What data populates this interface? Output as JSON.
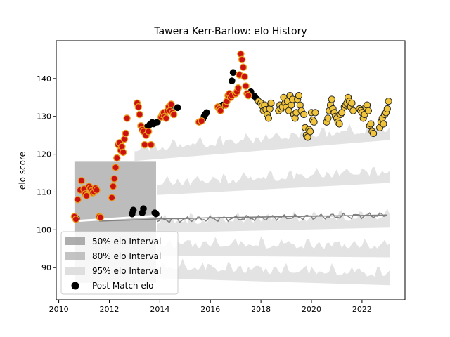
{
  "chart_data": {
    "type": "scatter",
    "title": "Tawera Kerr-Barlow: elo History",
    "xlabel": "",
    "ylabel": "elo score",
    "xlim": [
      2009.9,
      2023.7
    ],
    "ylim": [
      81.5,
      150
    ],
    "xticks": [
      2010,
      2012,
      2014,
      2016,
      2018,
      2020,
      2022
    ],
    "yticks": [
      90,
      100,
      110,
      120,
      130,
      140
    ],
    "grid": false,
    "legend": {
      "placement": "lower-left",
      "entries": [
        "50% elo Interval",
        "80% elo Interval",
        "95% elo Interval",
        "Post Match elo"
      ]
    },
    "colors": {
      "interval_50": "#9a9a9a",
      "interval_80": "#b4b4b4",
      "interval_95": "#d9d9d9",
      "marker_black": "#000000",
      "marker_red_fill": "#cc1111",
      "marker_red_edge": "#e8a020",
      "marker_yellow_fill": "#f0c43c",
      "marker_yellow_edge": "#222222",
      "line": "#808080"
    },
    "intervals": {
      "early_block": {
        "x": [
          2010.62,
          2013.85
        ],
        "lo": [
          86,
          86
        ],
        "hi": [
          118,
          124
        ]
      },
      "mean_line": {
        "x": [
          2011.6,
          2013,
          2014,
          2015,
          2016,
          2017,
          2018,
          2019,
          2020,
          2021,
          2022,
          2023
        ],
        "y": [
          102.3,
          102.6,
          102.9,
          103.0,
          103.2,
          103.3,
          103.4,
          103.5,
          103.6,
          103.7,
          103.8,
          103.9
        ]
      }
    },
    "series": [
      {
        "name": "Post Match elo",
        "style": "black",
        "x": [
          2010.65,
          2010.7,
          2012.9,
          2012.95,
          2013.3,
          2013.35,
          2013.5,
          2013.6,
          2013.7,
          2013.75,
          2013.8,
          2013.85,
          2013.9,
          2014.4,
          2014.7,
          2015.7,
          2015.75,
          2015.8,
          2015.85,
          2016.45,
          2016.5,
          2016.85,
          2016.9,
          2017.6,
          2017.75,
          2017.85
        ],
        "y": [
          103.2,
          103.0,
          104.2,
          105.2,
          104.5,
          105.6,
          127.2,
          127.8,
          128.4,
          128.0,
          104.5,
          104.2,
          128.5,
          132.2,
          132.3,
          129.3,
          130.0,
          130.6,
          131.0,
          132.8,
          133.0,
          139.4,
          141.6,
          136.5,
          135.3,
          134.5
        ]
      },
      {
        "name": "",
        "style": "red",
        "x": [
          2010.62,
          2010.68,
          2010.75,
          2010.85,
          2010.9,
          2011.0,
          2011.05,
          2011.1,
          2011.2,
          2011.25,
          2011.3,
          2011.35,
          2011.4,
          2011.45,
          2011.5,
          2011.6,
          2011.65,
          2012.1,
          2012.15,
          2012.2,
          2012.25,
          2012.3,
          2012.35,
          2012.4,
          2012.45,
          2012.5,
          2012.55,
          2012.6,
          2012.65,
          2012.7,
          2013.1,
          2013.15,
          2013.2,
          2013.25,
          2013.3,
          2013.35,
          2013.4,
          2013.45,
          2013.55,
          2013.65,
          2014.05,
          2014.1,
          2014.15,
          2014.2,
          2014.25,
          2014.3,
          2014.35,
          2014.4,
          2014.45,
          2014.5,
          2014.55,
          2015.55,
          2015.65,
          2016.3,
          2016.35,
          2016.4,
          2016.6,
          2016.65,
          2016.7,
          2016.75,
          2016.8,
          2016.85,
          2017.0,
          2017.05,
          2017.1,
          2017.15,
          2017.2,
          2017.25,
          2017.3,
          2017.35,
          2017.4,
          2017.45,
          2017.5
        ],
        "y": [
          103.5,
          102.8,
          108.0,
          110.5,
          113.0,
          110.8,
          109.5,
          109.0,
          111.5,
          111.0,
          110.3,
          109.8,
          110.0,
          111.0,
          110.5,
          103.5,
          103.3,
          108.5,
          111.5,
          113.5,
          116.5,
          119.0,
          122.5,
          123.0,
          121.0,
          122.0,
          120.5,
          124.0,
          125.5,
          129.5,
          133.5,
          132.5,
          130.5,
          127.5,
          126.5,
          126.0,
          122.5,
          125.0,
          126.0,
          122.5,
          129.8,
          130.5,
          131.0,
          130.0,
          129.5,
          131.5,
          132.5,
          131.5,
          133.2,
          131.0,
          130.5,
          128.5,
          128.8,
          132.5,
          132.0,
          131.5,
          133.0,
          134.0,
          135.5,
          136.0,
          135.0,
          135.5,
          136.0,
          136.5,
          137.5,
          141.0,
          146.5,
          145.0,
          143.0,
          140.5,
          138.0,
          136.0,
          135.5
        ]
      },
      {
        "name": "",
        "style": "yellow",
        "x": [
          2017.9,
          2018.0,
          2018.05,
          2018.1,
          2018.15,
          2018.2,
          2018.25,
          2018.3,
          2018.35,
          2018.4,
          2018.7,
          2018.75,
          2018.8,
          2018.85,
          2018.9,
          2018.95,
          2019.0,
          2019.05,
          2019.1,
          2019.15,
          2019.2,
          2019.25,
          2019.3,
          2019.35,
          2019.4,
          2019.45,
          2019.5,
          2019.55,
          2019.6,
          2019.7,
          2019.75,
          2019.8,
          2019.85,
          2019.9,
          2019.95,
          2020.0,
          2020.05,
          2020.1,
          2020.15,
          2020.6,
          2020.65,
          2020.7,
          2020.75,
          2020.8,
          2020.85,
          2020.9,
          2020.95,
          2021.0,
          2021.05,
          2021.1,
          2021.15,
          2021.2,
          2021.3,
          2021.35,
          2021.4,
          2021.45,
          2021.5,
          2021.55,
          2021.6,
          2021.65,
          2021.9,
          2021.95,
          2022.0,
          2022.05,
          2022.1,
          2022.15,
          2022.2,
          2022.25,
          2022.3,
          2022.35,
          2022.4,
          2022.45,
          2022.7,
          2022.75,
          2022.8,
          2022.85,
          2022.9,
          2022.95,
          2023.0,
          2023.05
        ],
        "y": [
          134.0,
          133.5,
          132.8,
          131.5,
          133.0,
          131.8,
          130.5,
          129.5,
          132.0,
          133.5,
          131.5,
          133.0,
          132.0,
          132.5,
          135.0,
          133.5,
          132.5,
          134.0,
          131.5,
          135.5,
          133.0,
          134.5,
          130.5,
          129.5,
          131.0,
          134.5,
          135.5,
          133.0,
          131.5,
          130.5,
          127.0,
          125.0,
          124.5,
          126.5,
          126.0,
          131.0,
          129.0,
          128.5,
          131.0,
          128.5,
          129.5,
          131.5,
          133.0,
          134.5,
          132.0,
          131.0,
          130.0,
          129.5,
          128.5,
          128.0,
          130.5,
          131.0,
          132.5,
          133.0,
          133.5,
          135.0,
          134.0,
          132.5,
          133.5,
          131.5,
          132.0,
          131.5,
          131.0,
          129.5,
          130.5,
          132.5,
          133.0,
          131.5,
          127.5,
          128.0,
          126.0,
          125.5,
          127.0,
          128.5,
          129.5,
          128.0,
          130.5,
          131.0,
          132.0,
          134.0
        ]
      }
    ]
  }
}
